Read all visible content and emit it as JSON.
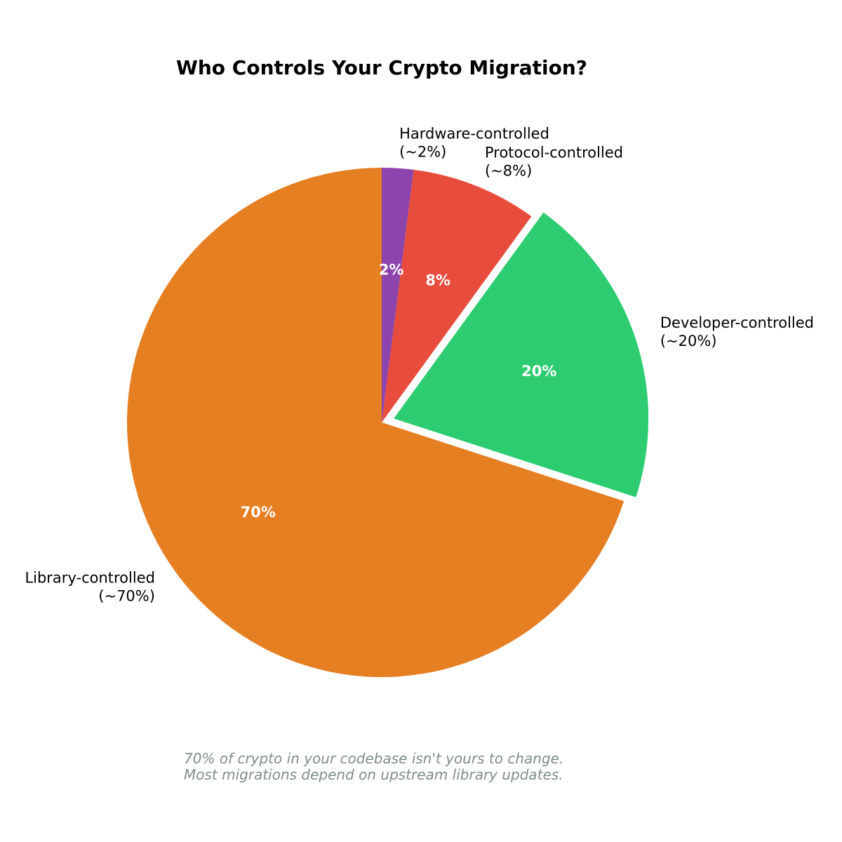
{
  "chart_data": {
    "type": "pie",
    "title": "Who Controls Your Crypto Migration?",
    "slices": [
      {
        "label": "Library-controlled",
        "approx_label": "(~70%)",
        "value": 70,
        "pct_text": "70%",
        "color": "#e67e22",
        "exploded": false
      },
      {
        "label": "Developer-controlled",
        "approx_label": "(~20%)",
        "value": 20,
        "pct_text": "20%",
        "color": "#2ecc71",
        "exploded": true
      },
      {
        "label": "Protocol-controlled",
        "approx_label": "(~8%)",
        "value": 8,
        "pct_text": "8%",
        "color": "#e74c3c",
        "exploded": false
      },
      {
        "label": "Hardware-controlled",
        "approx_label": "(~2%)",
        "value": 2,
        "pct_text": "2%",
        "color": "#8e44ad",
        "exploded": false
      }
    ],
    "start_angle_deg": 90,
    "direction": "counterclockwise",
    "caption_lines": [
      "70% of crypto in your codebase isn't yours to change.",
      "Most migrations depend on upstream library updates."
    ]
  }
}
